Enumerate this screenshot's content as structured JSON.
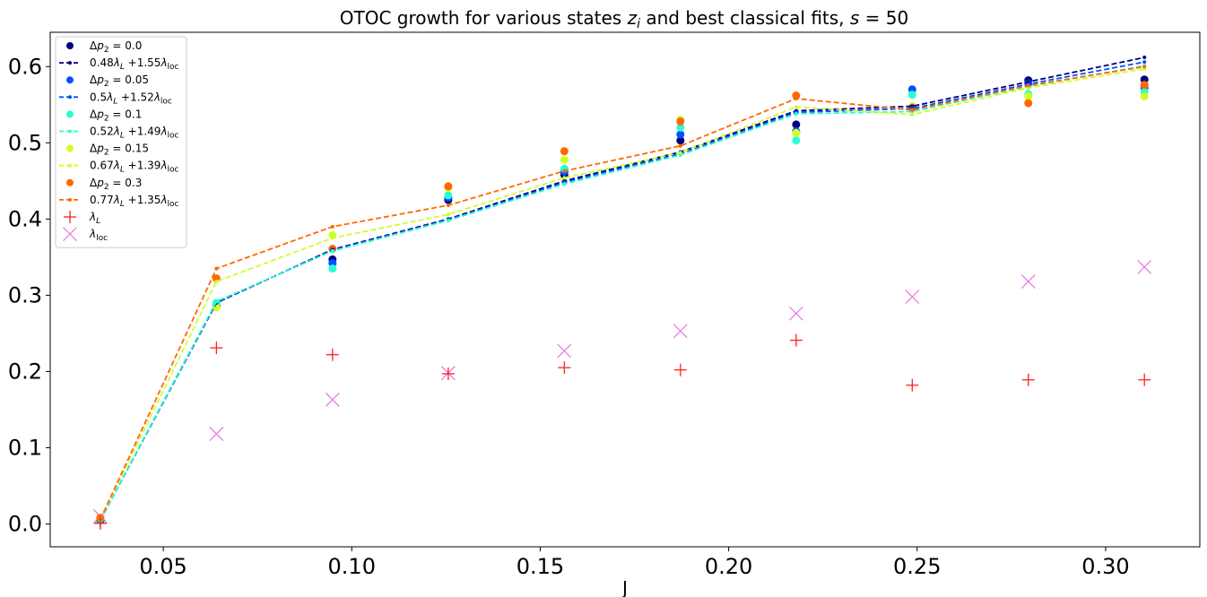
{
  "chart_data": {
    "type": "scatter",
    "title": {
      "prefix": "OTOC growth for various states ",
      "var": "z",
      "sub": "i",
      "middle": " and best classical fits, ",
      "s_var": "s",
      "suffix": " = 50"
    },
    "xlabel": "J",
    "ylabel": "",
    "xlim": [
      0.02,
      0.325
    ],
    "ylim": [
      -0.03,
      0.645
    ],
    "xticks": [
      {
        "v": 0.05,
        "label": "0.05"
      },
      {
        "v": 0.1,
        "label": "0.10"
      },
      {
        "v": 0.15,
        "label": "0.15"
      },
      {
        "v": 0.2,
        "label": "0.20"
      },
      {
        "v": 0.25,
        "label": "0.25"
      },
      {
        "v": 0.3,
        "label": "0.30"
      }
    ],
    "yticks": [
      {
        "v": 0.0,
        "label": "0.0"
      },
      {
        "v": 0.1,
        "label": "0.1"
      },
      {
        "v": 0.2,
        "label": "0.2"
      },
      {
        "v": 0.3,
        "label": "0.3"
      },
      {
        "v": 0.4,
        "label": "0.4"
      },
      {
        "v": 0.5,
        "label": "0.5"
      },
      {
        "v": 0.6,
        "label": "0.6"
      }
    ],
    "grid": false,
    "legend_position": "top-left",
    "x": [
      0.0333,
      0.0641,
      0.0949,
      0.1256,
      0.1564,
      0.1872,
      0.2179,
      0.2487,
      0.2795,
      0.3103
    ],
    "groups": [
      {
        "color": "#00007f",
        "label": "Δp_2 = 0.0",
        "fit_label": {
          "a": "0.48",
          "b": "1.55"
        },
        "points": [
          0.005,
          0.285,
          0.347,
          0.425,
          0.458,
          0.503,
          0.524,
          0.547,
          0.582,
          0.583
        ],
        "fit": [
          0.005,
          0.29,
          0.36,
          0.4,
          0.45,
          0.488,
          0.542,
          0.548,
          0.58,
          0.612
        ]
      },
      {
        "color": "#0050ff",
        "label": "Δp_2 = 0.05",
        "fit_label": {
          "a": "0.5",
          "b": "1.52"
        },
        "points": [
          0.006,
          0.287,
          0.342,
          0.428,
          0.462,
          0.511,
          0.515,
          0.57,
          0.578,
          0.572
        ],
        "fit": [
          0.005,
          0.291,
          0.359,
          0.399,
          0.448,
          0.486,
          0.54,
          0.545,
          0.577,
          0.606
        ]
      },
      {
        "color": "#29ffce",
        "label": "Δp_2 = 0.1",
        "fit_label": {
          "a": "0.52",
          "b": "1.49"
        },
        "points": [
          0.007,
          0.29,
          0.335,
          0.431,
          0.466,
          0.52,
          0.503,
          0.563,
          0.564,
          0.567
        ],
        "fit": [
          0.005,
          0.292,
          0.358,
          0.398,
          0.446,
          0.484,
          0.538,
          0.541,
          0.574,
          0.601
        ]
      },
      {
        "color": "#ceff29",
        "label": "Δp_2 = 0.15",
        "fit_label": {
          "a": "0.67",
          "b": "1.39"
        },
        "points": [
          0.008,
          0.284,
          0.379,
          0.441,
          0.478,
          0.53,
          0.513,
          0.548,
          0.561,
          0.561
        ],
        "fit": [
          0.006,
          0.318,
          0.375,
          0.406,
          0.454,
          0.487,
          0.547,
          0.537,
          0.572,
          0.597
        ]
      },
      {
        "color": "#ff6800",
        "label": "Δp_2 = 0.3",
        "fit_label": {
          "a": "0.77",
          "b": "1.35"
        },
        "points": [
          0.008,
          0.322,
          0.361,
          0.443,
          0.489,
          0.528,
          0.562,
          0.546,
          0.552,
          0.576
        ],
        "fit": [
          0.006,
          0.335,
          0.39,
          0.418,
          0.463,
          0.496,
          0.558,
          0.543,
          0.575,
          0.6
        ]
      }
    ],
    "lambda_L": {
      "color": "#ff2020",
      "label_var": "λ",
      "label_sub": "L",
      "values": [
        0.001,
        0.231,
        0.222,
        0.197,
        0.205,
        0.202,
        0.241,
        0.182,
        0.189,
        0.189
      ]
    },
    "lambda_loc": {
      "color": "#e57fe5",
      "label_var": "λ",
      "label_sub": "loc",
      "values": [
        0.01,
        0.118,
        0.163,
        0.198,
        0.227,
        0.253,
        0.276,
        0.298,
        0.318,
        0.337
      ]
    }
  }
}
